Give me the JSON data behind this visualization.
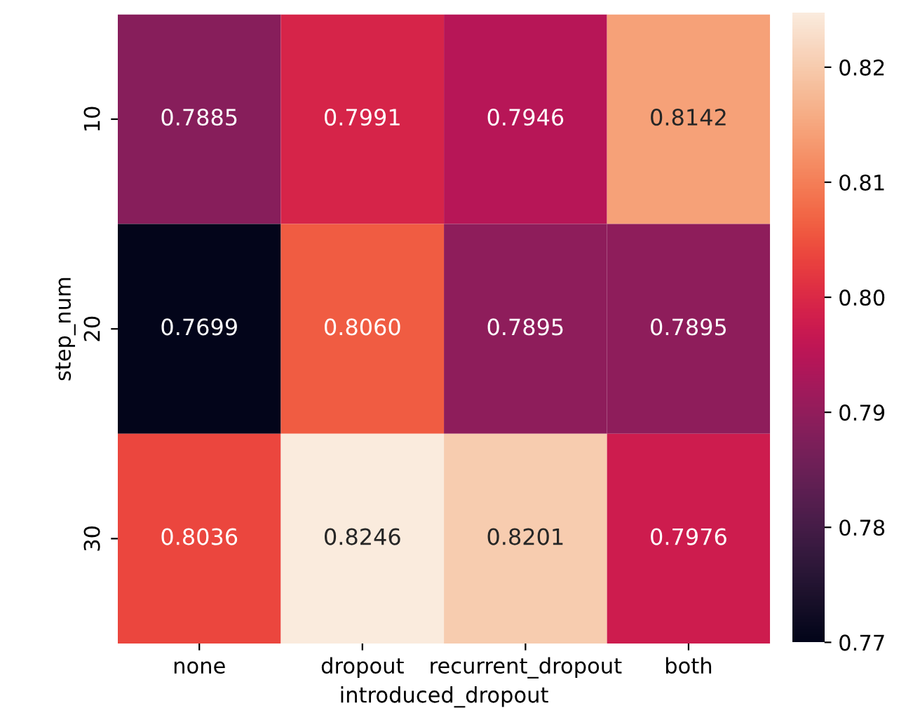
{
  "chart_data": {
    "type": "heatmap",
    "xlabel": "introduced_dropout",
    "ylabel": "step_num",
    "categories": [
      "none",
      "dropout",
      "recurrent_dropout",
      "both"
    ],
    "y_categories": [
      "10",
      "20",
      "30"
    ],
    "cells": [
      [
        0.7885,
        0.7991,
        0.7946,
        0.8142
      ],
      [
        0.7699,
        0.806,
        0.7895,
        0.7895
      ],
      [
        0.8036,
        0.8246,
        0.8201,
        0.7976
      ]
    ],
    "cell_labels": [
      [
        "0.7885",
        "0.7991",
        "0.7946",
        "0.8142"
      ],
      [
        "0.7699",
        "0.8060",
        "0.7895",
        "0.7895"
      ],
      [
        "0.8036",
        "0.8246",
        "0.8201",
        "0.7976"
      ]
    ],
    "data_labels": true,
    "clim": [
      0.7699,
      0.8246
    ],
    "cticks": [
      0.77,
      0.78,
      0.79,
      {
        "value": 0.8,
        "label": "0.80"
      },
      0.81,
      0.82
    ]
  }
}
